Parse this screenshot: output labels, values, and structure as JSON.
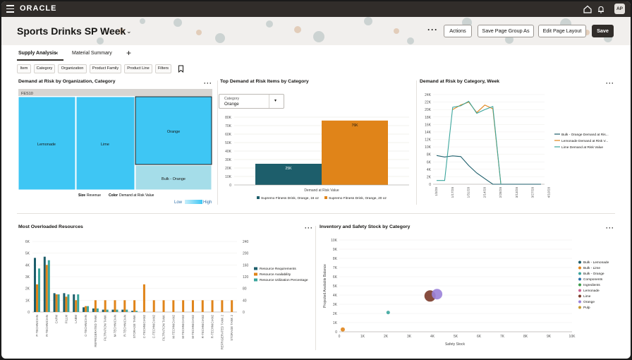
{
  "topbar": {
    "brand": "ORACLE",
    "avatar": "AP",
    "icons": [
      "menu-icon",
      "home-icon",
      "bell-icon"
    ]
  },
  "header": {
    "title": "Sports Drinks SP Week",
    "buttons": {
      "actions": "Actions",
      "save_group": "Save Page Group As",
      "edit_layout": "Edit Page Layout",
      "save": "Save"
    }
  },
  "tabs": {
    "supply": "Supply Analysis",
    "close": "×",
    "material": "Material Summary",
    "add": "+"
  },
  "filters": [
    "Item",
    "Category",
    "Organization",
    "Product Family",
    "Product Line",
    "Filters"
  ],
  "panels": {
    "treemap": {
      "title": "Demand at Risk by Organization, Category",
      "org": "FES10",
      "cells": [
        {
          "label": "Lemonade",
          "value": 1
        },
        {
          "label": "Lime",
          "value": 1
        },
        {
          "label": "Orange",
          "value": 1
        },
        {
          "label": "Bulk - Orange",
          "value": 1
        }
      ],
      "size_label": "Size",
      "size_value": "Revenue",
      "color_label": "Color",
      "color_value": "Demand at Risk Value",
      "legend_low": "Low",
      "legend_high": "High",
      "colors": {
        "bright": "#3ec6f4",
        "light": "#a5dde9"
      }
    },
    "top_items": {
      "title": "Top Demand at Risk Items by Category",
      "select_label": "Category",
      "select_value": "Orange",
      "xlabel": "Demand at Risk Value"
    },
    "week": {
      "title": "Demand at Risk by Category, Week"
    },
    "resources": {
      "title": "Most Overloaded Resources"
    },
    "inventory": {
      "title": "Inventory and Safety Stock by Category"
    }
  },
  "chart_data": [
    {
      "type": "bar",
      "title": "Top Demand at Risk Items by Category",
      "categories": [
        "Supremo Fitness Drink, Orange, 16 oz",
        "Supremo Fitness Drink, Orange, 20 oz"
      ],
      "values": [
        25000,
        76000
      ],
      "data_labels": [
        "25K",
        "76K"
      ],
      "colors": [
        "#1d5e6b",
        "#e08419"
      ],
      "xlabel": "Demand at Risk Value",
      "ylim": [
        0,
        80000
      ],
      "yticks": [
        "0",
        "10K",
        "20K",
        "30K",
        "40K",
        "50K",
        "60K",
        "70K",
        "80K"
      ]
    },
    {
      "type": "line",
      "title": "Demand at Risk by Category, Week",
      "x": [
        "1/3/28",
        "1/10/28",
        "1/17/28",
        "1/24/28",
        "1/31/28",
        "2/7/28",
        "2/14/28",
        "2/21/28",
        "2/28/28",
        "3/6/28",
        "3/13/28",
        "3/20/28",
        "3/27/28",
        "4/3/28"
      ],
      "ylim": [
        0,
        24000
      ],
      "yticks": [
        "0",
        "2K",
        "4K",
        "6K",
        "8K",
        "10K",
        "12K",
        "14K",
        "16K",
        "18K",
        "20K",
        "22K",
        "24K"
      ],
      "xtick_labels": [
        "1/3/28",
        "1/17/28",
        "1/31/28",
        "2/14/28",
        "2/28/28",
        "3/13/28",
        "3/27/28",
        "4/10/28"
      ],
      "series": [
        {
          "name": "Bulk - Orange Demand at Ris...",
          "color": "#1d5e6b",
          "values": [
            7700,
            7300,
            7600,
            7400,
            5000,
            3000,
            1500,
            0,
            0,
            0,
            0,
            0,
            0,
            0
          ]
        },
        {
          "name": "Lemonade Demand at Risk V...",
          "color": "#e08419",
          "values": [
            null,
            null,
            20000,
            21200,
            22000,
            19200,
            21200,
            20200,
            0,
            null,
            null,
            null,
            null,
            null
          ]
        },
        {
          "name": "Lime Demand at Risk Value",
          "color": "#3aa59c",
          "values": [
            1000,
            1000,
            20600,
            21000,
            22200,
            19000,
            20000,
            20800,
            0,
            null,
            null,
            null,
            null,
            null
          ]
        }
      ]
    },
    {
      "type": "bar",
      "title": "Most Overloaded Resources",
      "categories": [
        "P-TECHNICIAN",
        "R-TECHNICIAN",
        "CAPM",
        "FILLM",
        "LABM",
        "C-TECHNICIAN",
        "REFRIGERATED TANK",
        "FILTRATION TANK",
        "M-TECHNICIAN",
        "R-TECHNICIAN",
        "STORAGE TANK",
        "C-TECHNICIAN2",
        "C-TECHNICIAN2",
        "FILTRATION TANK",
        "M-TECHNICIAN2",
        "M-TECHNICIAN2",
        "M-TECHNICIAN2",
        "R-TECHNICIAN2",
        "R-TECHNICIAN2",
        "REFRIGERATED TANK 2",
        "STORAGE TANK 2"
      ],
      "ylim_left": [
        0,
        6000
      ],
      "ylim_right": [
        0,
        240
      ],
      "yticks_left": [
        "0",
        "1K",
        "2K",
        "3K",
        "4K",
        "5K",
        "6K"
      ],
      "yticks_right": [
        "0",
        "40",
        "80",
        "120",
        "160",
        "200",
        "240"
      ],
      "series": [
        {
          "name": "Resource Requirements",
          "color": "#1d5e6b",
          "axis": "left",
          "values": [
            4600,
            4700,
            1600,
            1600,
            1500,
            400,
            300,
            200,
            200,
            200,
            100,
            0,
            0,
            0,
            0,
            0,
            0,
            0,
            0,
            0,
            0
          ]
        },
        {
          "name": "Resource Availability",
          "color": "#e08419",
          "axis": "right",
          "values": [
            94,
            160,
            60,
            52,
            40,
            20,
            40,
            40,
            40,
            40,
            40,
            94,
            40,
            40,
            40,
            40,
            40,
            40,
            40,
            40,
            40
          ]
        },
        {
          "name": "Resource Utilization Percentage",
          "color": "#3aa59c",
          "axis": "left",
          "values": [
            3700,
            4400,
            1500,
            1500,
            1500,
            500,
            300,
            200,
            200,
            200,
            100,
            0,
            0,
            0,
            0,
            0,
            0,
            0,
            0,
            0,
            0
          ]
        }
      ]
    },
    {
      "type": "scatter",
      "title": "Inventory and Safety Stock by Category",
      "xlabel": "Safety Stock",
      "ylabel": "Projected Available Balance",
      "xlim": [
        0,
        10000
      ],
      "ylim": [
        0,
        10000
      ],
      "xticks": [
        "0",
        "1K",
        "2K",
        "3K",
        "4K",
        "5K",
        "6K",
        "7K",
        "8K",
        "9K",
        "10K"
      ],
      "yticks": [
        "0",
        "1K",
        "2K",
        "3K",
        "4K",
        "5K",
        "6K",
        "7K",
        "8K",
        "9K",
        "10K"
      ],
      "series": [
        {
          "name": "Bulk - Lemonade",
          "color": "#1d5e6b",
          "points": []
        },
        {
          "name": "Bulk - Lime",
          "color": "#e08419",
          "points": [
            [
              150,
              250
            ]
          ]
        },
        {
          "name": "Bulk - Orange",
          "color": "#3aa59c",
          "points": [
            [
              2100,
              2100
            ]
          ]
        },
        {
          "name": "Components",
          "color": "#2d6fa8",
          "points": []
        },
        {
          "name": "Ingredients",
          "color": "#3c9c4a",
          "points": []
        },
        {
          "name": "Lemonade",
          "color": "#c9608f",
          "points": []
        },
        {
          "name": "Lime",
          "color": "#7a3a2a",
          "points": [
            [
              3900,
              3900
            ]
          ]
        },
        {
          "name": "Orange",
          "color": "#9b82d9",
          "points": [
            [
              4200,
              4100
            ]
          ]
        },
        {
          "name": "Pulp",
          "color": "#c69a2e",
          "points": []
        }
      ]
    }
  ]
}
